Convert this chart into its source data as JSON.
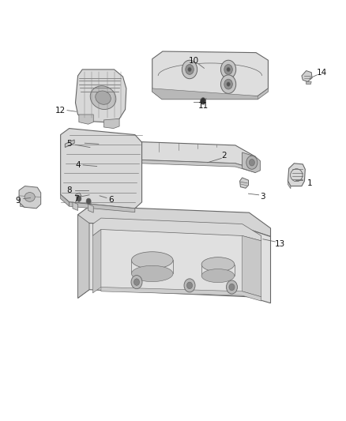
{
  "background_color": "#ffffff",
  "line_color": "#666666",
  "line_width": 0.8,
  "label_fontsize": 7.5,
  "fig_width": 4.38,
  "fig_height": 5.33,
  "dpi": 100,
  "label_configs": {
    "1": {
      "txt": [
        0.895,
        0.565
      ],
      "line_from": [
        0.875,
        0.572
      ],
      "line_to": [
        0.855,
        0.572
      ]
    },
    "2": {
      "txt": [
        0.648,
        0.63
      ],
      "line_from": [
        0.64,
        0.624
      ],
      "line_to": [
        0.6,
        0.614
      ]
    },
    "3": {
      "txt": [
        0.76,
        0.533
      ],
      "line_from": [
        0.748,
        0.537
      ],
      "line_to": [
        0.718,
        0.54
      ]
    },
    "4": {
      "txt": [
        0.225,
        0.608
      ],
      "line_from": [
        0.24,
        0.608
      ],
      "line_to": [
        0.28,
        0.605
      ]
    },
    "5": {
      "txt": [
        0.2,
        0.658
      ],
      "line_from": [
        0.218,
        0.656
      ],
      "line_to": [
        0.26,
        0.65
      ]
    },
    "6": {
      "txt": [
        0.32,
        0.525
      ],
      "line_from": [
        0.308,
        0.53
      ],
      "line_to": [
        0.288,
        0.535
      ]
    },
    "7": {
      "txt": [
        0.22,
        0.527
      ],
      "line_from": [
        0.234,
        0.533
      ],
      "line_to": [
        0.258,
        0.537
      ]
    },
    "8": {
      "txt": [
        0.2,
        0.548
      ],
      "line_from": [
        0.217,
        0.548
      ],
      "line_to": [
        0.255,
        0.548
      ]
    },
    "9": {
      "txt": [
        0.052,
        0.523
      ],
      "line_from": [
        0.068,
        0.528
      ],
      "line_to": [
        0.088,
        0.53
      ]
    },
    "10": {
      "txt": [
        0.56,
        0.855
      ],
      "line_from": [
        0.574,
        0.848
      ],
      "line_to": [
        0.59,
        0.838
      ]
    },
    "11": {
      "txt": [
        0.588,
        0.748
      ],
      "line_from": [
        0.592,
        0.756
      ],
      "line_to": [
        0.596,
        0.766
      ]
    },
    "12": {
      "txt": [
        0.175,
        0.738
      ],
      "line_from": [
        0.194,
        0.738
      ],
      "line_to": [
        0.22,
        0.735
      ]
    },
    "13": {
      "txt": [
        0.81,
        0.42
      ],
      "line_from": [
        0.795,
        0.426
      ],
      "line_to": [
        0.76,
        0.432
      ]
    },
    "14": {
      "txt": [
        0.93,
        0.828
      ],
      "line_from": [
        0.916,
        0.822
      ],
      "line_to": [
        0.895,
        0.814
      ]
    }
  }
}
